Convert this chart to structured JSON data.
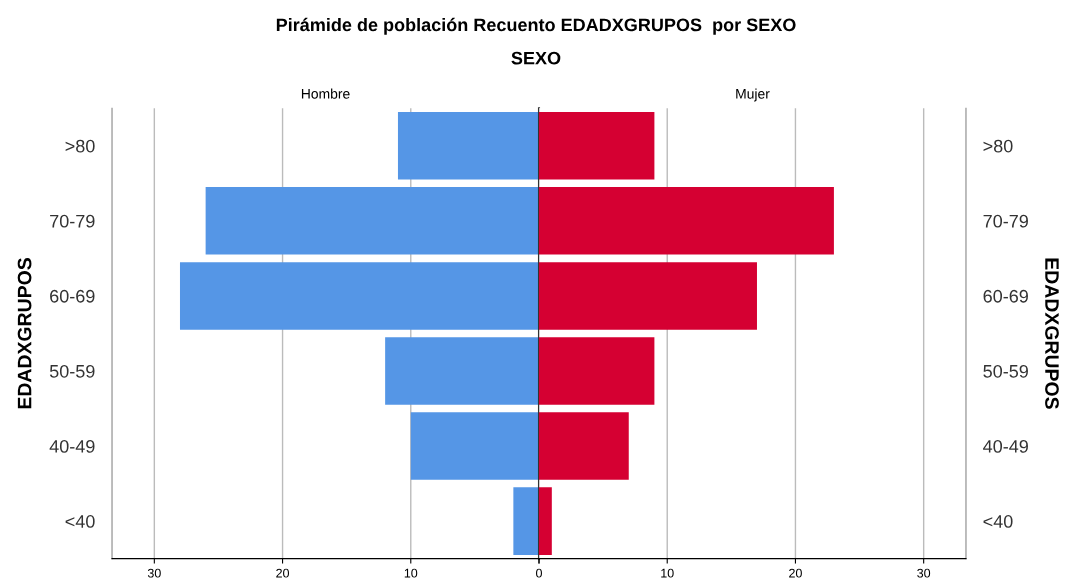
{
  "chart_data": [
    {
      "type": "bar",
      "orientation": "horizontal",
      "title": "Pirámide de población Recuento EDADXGRUPOS  por SEXO",
      "subtitle": "SEXO",
      "ylabel": "EDADXGRUPOS",
      "categories": [
        ">80",
        "70-79",
        "60-69",
        "50-59",
        "40-49",
        "<40"
      ],
      "series": [
        {
          "name": "Hombre",
          "color": "#5596e6",
          "values": [
            11,
            26,
            28,
            12,
            10,
            2
          ]
        }
      ],
      "xlim": [
        33.3,
        0
      ],
      "xticks": [
        30,
        20,
        10,
        0
      ],
      "grid": "x"
    },
    {
      "type": "bar",
      "orientation": "horizontal",
      "ylabel": "EDADXGRUPOS",
      "categories": [
        ">80",
        "70-79",
        "60-69",
        "50-59",
        "40-49",
        "<40"
      ],
      "series": [
        {
          "name": "Mujer",
          "color": "#d50032",
          "values": [
            9,
            23,
            17,
            9,
            7,
            1
          ]
        }
      ],
      "xlim": [
        0,
        33.3
      ],
      "xticks": [
        {
          "value": 0,
          "label": null
        },
        10,
        20,
        30
      ],
      "grid": "x"
    }
  ]
}
